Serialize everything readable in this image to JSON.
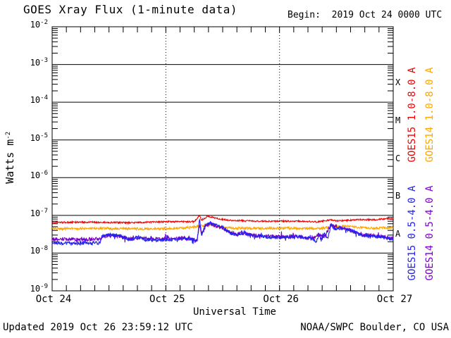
{
  "header": {
    "title": "GOES Xray Flux (1-minute data)",
    "begin": "Begin:  2019 Oct 24 0000 UTC"
  },
  "footer": {
    "updated": "Updated 2019 Oct 26 23:59:12 UTC",
    "source": "NOAA/SWPC Boulder, CO USA"
  },
  "chart_data": {
    "type": "line",
    "title": "GOES Xray Flux (1-minute data)",
    "xlabel": "Universal Time",
    "ylabel_base": "Watts m",
    "ylabel_exp": "-2",
    "y_tick_base": "10",
    "y_tick_exponents": [
      -2,
      -3,
      -4,
      -5,
      -6,
      -7,
      -8,
      -9
    ],
    "y_log_range": [
      -9,
      -2
    ],
    "x_range_hours": [
      0,
      72
    ],
    "x_ticks": [
      {
        "hour": 0,
        "label": "Oct 24"
      },
      {
        "hour": 24,
        "label": "Oct 25"
      },
      {
        "hour": 48,
        "label": "Oct 26"
      },
      {
        "hour": 72,
        "label": "Oct 27"
      }
    ],
    "x_minor_tick_hours": 3,
    "grid": {
      "horizontal_decades": true,
      "vertical_dotted_days": [
        24,
        48
      ]
    },
    "flare_classes": [
      {
        "label": "X",
        "log_mid": -3.5
      },
      {
        "label": "M",
        "log_mid": -4.5
      },
      {
        "label": "C",
        "log_mid": -5.5
      },
      {
        "label": "B",
        "log_mid": -6.5
      },
      {
        "label": "A",
        "log_mid": -7.5
      }
    ],
    "series": [
      {
        "name": "GOES15 1.0-8.0 A",
        "color": "#f00000",
        "noise": 0.02,
        "keypoints": [
          [
            0,
            6.5e-08
          ],
          [
            8,
            6.6e-08
          ],
          [
            16,
            6.4e-08
          ],
          [
            24,
            6.8e-08
          ],
          [
            30,
            6.8e-08
          ],
          [
            30.8,
            9e-08
          ],
          [
            31.1,
            1.05e-07
          ],
          [
            31.5,
            7.5e-08
          ],
          [
            32,
            8e-08
          ],
          [
            32.8,
            9.5e-08
          ],
          [
            33.5,
            9.2e-08
          ],
          [
            35,
            8.2e-08
          ],
          [
            37,
            7.5e-08
          ],
          [
            40,
            7.2e-08
          ],
          [
            44,
            7e-08
          ],
          [
            48,
            7e-08
          ],
          [
            52,
            7e-08
          ],
          [
            56,
            6.8e-08
          ],
          [
            58.8,
            7.6e-08
          ],
          [
            60,
            7.2e-08
          ],
          [
            63,
            7.4e-08
          ],
          [
            65,
            7.8e-08
          ],
          [
            68,
            7.6e-08
          ],
          [
            70.5,
            8.2e-08
          ],
          [
            72,
            8e-08
          ]
        ]
      },
      {
        "name": "GOES14 1.0-8.0 A",
        "color": "#ffa500",
        "noise": 0.03,
        "keypoints": [
          [
            0,
            4.4e-08
          ],
          [
            10,
            4.5e-08
          ],
          [
            20,
            4.4e-08
          ],
          [
            28,
            4.6e-08
          ],
          [
            31,
            5.2e-08
          ],
          [
            33,
            5.6e-08
          ],
          [
            35,
            5e-08
          ],
          [
            38,
            4.6e-08
          ],
          [
            44,
            4.5e-08
          ],
          [
            50,
            4.6e-08
          ],
          [
            56,
            4.4e-08
          ],
          [
            59,
            5e-08
          ],
          [
            62,
            5.2e-08
          ],
          [
            65,
            4.8e-08
          ],
          [
            68,
            4.6e-08
          ],
          [
            72,
            4.7e-08
          ]
        ]
      },
      {
        "name": "GOES15 0.5-4.0 A",
        "color": "#2222ee",
        "noise": 0.042,
        "keypoints": [
          [
            0,
            1.85e-08
          ],
          [
            5,
            1.8e-08
          ],
          [
            10,
            1.85e-08
          ],
          [
            10.6,
            2.9e-08
          ],
          [
            12,
            3.1e-08
          ],
          [
            14,
            3e-08
          ],
          [
            15.5,
            2.5e-08
          ],
          [
            16.5,
            2.2e-08
          ],
          [
            18,
            2.7e-08
          ],
          [
            19.5,
            2.3e-08
          ],
          [
            22,
            2.2e-08
          ],
          [
            26,
            2.3e-08
          ],
          [
            29,
            2.4e-08
          ],
          [
            30.6,
            2e-08
          ],
          [
            31.1,
            8e-08
          ],
          [
            31.6,
            3e-08
          ],
          [
            32.3,
            5.5e-08
          ],
          [
            33.3,
            6.5e-08
          ],
          [
            34.5,
            5.5e-08
          ],
          [
            36,
            4.8e-08
          ],
          [
            37.5,
            3.4e-08
          ],
          [
            39,
            3e-08
          ],
          [
            40.5,
            3.6e-08
          ],
          [
            42,
            2.9e-08
          ],
          [
            45,
            2.7e-08
          ],
          [
            48,
            2.6e-08
          ],
          [
            52,
            2.7e-08
          ],
          [
            55,
            2.4e-08
          ],
          [
            55.8,
            1.9e-08
          ],
          [
            56.3,
            3.4e-08
          ],
          [
            56.8,
            2.2e-08
          ],
          [
            57.5,
            3.2e-08
          ],
          [
            58.2,
            2.4e-08
          ],
          [
            58.9,
            6.2e-08
          ],
          [
            59.6,
            4.3e-08
          ],
          [
            60.5,
            4.8e-08
          ],
          [
            62,
            4.3e-08
          ],
          [
            63.5,
            4e-08
          ],
          [
            64.5,
            3.3e-08
          ],
          [
            66,
            2.8e-08
          ],
          [
            68,
            2.8e-08
          ],
          [
            70,
            2.6e-08
          ],
          [
            72,
            2.3e-08
          ]
        ]
      },
      {
        "name": "GOES14 0.5-4.0 A",
        "color": "#7d00c8",
        "noise": 0.048,
        "keypoints": [
          [
            0,
            2.35e-08
          ],
          [
            5,
            2.3e-08
          ],
          [
            10,
            2.35e-08
          ],
          [
            10.6,
            2.7e-08
          ],
          [
            12,
            2.9e-08
          ],
          [
            14,
            2.8e-08
          ],
          [
            16.5,
            2.4e-08
          ],
          [
            18,
            2.6e-08
          ],
          [
            20,
            2.4e-08
          ],
          [
            24,
            2.4e-08
          ],
          [
            28,
            2.5e-08
          ],
          [
            30.6,
            2.2e-08
          ],
          [
            31.1,
            5.5e-08
          ],
          [
            31.6,
            3e-08
          ],
          [
            32.3,
            5e-08
          ],
          [
            33.3,
            6e-08
          ],
          [
            34.5,
            5.2e-08
          ],
          [
            36,
            4.5e-08
          ],
          [
            37.5,
            3.6e-08
          ],
          [
            39,
            3.2e-08
          ],
          [
            40.5,
            3.4e-08
          ],
          [
            42,
            3e-08
          ],
          [
            45,
            2.8e-08
          ],
          [
            48,
            2.8e-08
          ],
          [
            52,
            2.7e-08
          ],
          [
            55,
            2.4e-08
          ],
          [
            56.3,
            3e-08
          ],
          [
            57.5,
            2.8e-08
          ],
          [
            58.9,
            5.6e-08
          ],
          [
            60.5,
            4.6e-08
          ],
          [
            62,
            4.4e-08
          ],
          [
            63.5,
            3.8e-08
          ],
          [
            64.5,
            3.2e-08
          ],
          [
            66,
            3e-08
          ],
          [
            68,
            2.9e-08
          ],
          [
            70,
            2.7e-08
          ],
          [
            72,
            2.4e-08
          ]
        ]
      }
    ],
    "legend_position": "right-rotated"
  }
}
